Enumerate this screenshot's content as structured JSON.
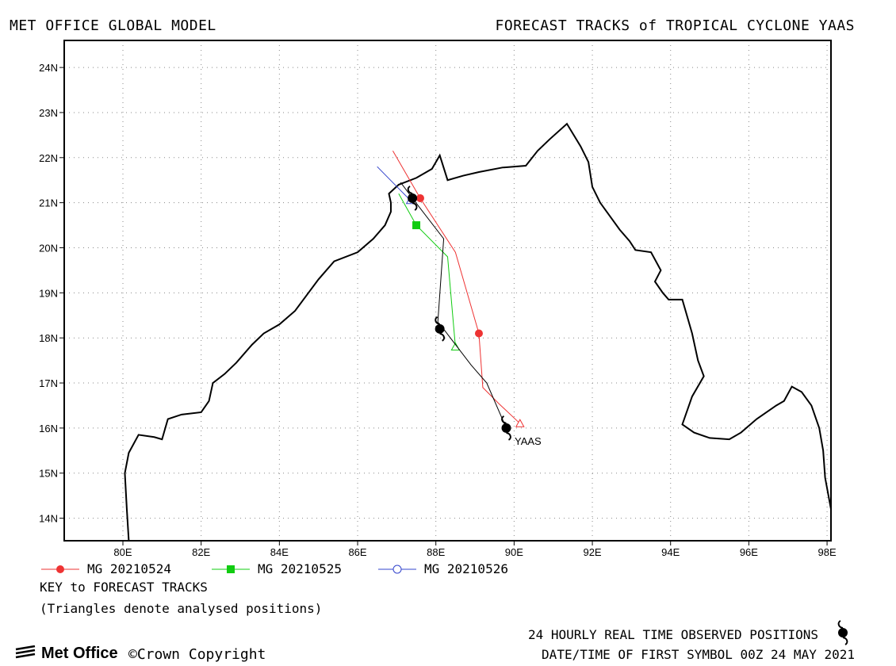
{
  "header": {
    "left_title": "MET OFFICE GLOBAL MODEL",
    "right_title": "FORECAST TRACKS of TROPICAL CYCLONE YAAS"
  },
  "map": {
    "lon_range": [
      78.5,
      98.1
    ],
    "lat_range": [
      13.5,
      24.6
    ],
    "grid": "dotted",
    "x_ticks": [
      "80E",
      "82E",
      "84E",
      "86E",
      "88E",
      "90E",
      "92E",
      "94E",
      "96E",
      "98E"
    ],
    "y_ticks": [
      "14N",
      "15N",
      "16N",
      "17N",
      "18N",
      "19N",
      "20N",
      "21N",
      "22N",
      "23N",
      "24N"
    ],
    "storm_label": "YAAS",
    "colors": {
      "coast": "#000000",
      "mg_20210524": "#ee3333",
      "mg_20210525": "#11cc11",
      "mg_20210526": "#3344cc",
      "observed": "#000000"
    },
    "coastline": [
      [
        80.15,
        13.5
      ],
      [
        80.1,
        14.2
      ],
      [
        80.05,
        15.0
      ],
      [
        80.15,
        15.45
      ],
      [
        80.4,
        15.85
      ],
      [
        80.8,
        15.8
      ],
      [
        81.0,
        15.75
      ],
      [
        81.15,
        16.2
      ],
      [
        81.5,
        16.3
      ],
      [
        82.0,
        16.35
      ],
      [
        82.2,
        16.6
      ],
      [
        82.3,
        17.0
      ],
      [
        82.6,
        17.2
      ],
      [
        82.9,
        17.45
      ],
      [
        83.3,
        17.85
      ],
      [
        83.6,
        18.1
      ],
      [
        84.0,
        18.3
      ],
      [
        84.4,
        18.6
      ],
      [
        84.7,
        18.95
      ],
      [
        85.0,
        19.3
      ],
      [
        85.4,
        19.7
      ],
      [
        86.0,
        19.9
      ],
      [
        86.4,
        20.2
      ],
      [
        86.7,
        20.5
      ],
      [
        86.85,
        20.8
      ],
      [
        86.85,
        21.0
      ],
      [
        86.8,
        21.2
      ],
      [
        87.05,
        21.4
      ],
      [
        87.5,
        21.55
      ],
      [
        87.9,
        21.75
      ],
      [
        88.1,
        22.05
      ],
      [
        88.3,
        21.5
      ],
      [
        88.7,
        21.6
      ],
      [
        89.1,
        21.68
      ],
      [
        89.7,
        21.78
      ],
      [
        90.3,
        21.82
      ],
      [
        90.6,
        22.15
      ],
      [
        90.9,
        22.4
      ],
      [
        91.35,
        22.75
      ],
      [
        91.7,
        22.25
      ],
      [
        91.9,
        21.9
      ],
      [
        92.0,
        21.35
      ],
      [
        92.2,
        21.0
      ],
      [
        92.45,
        20.7
      ],
      [
        92.7,
        20.4
      ],
      [
        92.95,
        20.15
      ],
      [
        93.1,
        19.95
      ],
      [
        93.5,
        19.9
      ],
      [
        93.75,
        19.5
      ],
      [
        93.6,
        19.25
      ],
      [
        93.8,
        19.0
      ],
      [
        93.95,
        18.85
      ],
      [
        94.3,
        18.85
      ],
      [
        94.55,
        18.1
      ],
      [
        94.7,
        17.5
      ],
      [
        94.85,
        17.15
      ],
      [
        94.55,
        16.7
      ],
      [
        94.3,
        16.08
      ],
      [
        94.6,
        15.9
      ],
      [
        95.0,
        15.78
      ],
      [
        95.5,
        15.75
      ],
      [
        95.8,
        15.9
      ],
      [
        96.2,
        16.2
      ],
      [
        96.7,
        16.5
      ],
      [
        96.9,
        16.6
      ],
      [
        97.1,
        16.92
      ],
      [
        97.35,
        16.8
      ],
      [
        97.6,
        16.5
      ],
      [
        97.8,
        16.0
      ],
      [
        97.9,
        15.5
      ],
      [
        97.95,
        14.9
      ],
      [
        98.1,
        14.2
      ]
    ]
  },
  "tracks": [
    {
      "name": "MG 20210524",
      "color": "#ee3333",
      "marker": "circle",
      "points": [
        [
          90.15,
          16.1
        ],
        [
          89.6,
          16.55
        ],
        [
          89.2,
          16.9
        ],
        [
          89.1,
          18.1
        ],
        [
          88.5,
          19.9
        ],
        [
          87.6,
          21.1
        ],
        [
          86.9,
          22.15
        ]
      ],
      "markers": [
        [
          89.1,
          18.1
        ],
        [
          87.6,
          21.1
        ]
      ],
      "analysed": [
        90.15,
        16.1
      ]
    },
    {
      "name": "MG 20210525",
      "color": "#11cc11",
      "marker": "square",
      "points": [
        [
          88.5,
          17.8
        ],
        [
          88.3,
          19.8
        ],
        [
          87.5,
          20.5
        ],
        [
          87.05,
          21.2
        ]
      ],
      "markers": [
        [
          87.5,
          20.5
        ]
      ],
      "analysed": [
        88.5,
        17.8
      ]
    },
    {
      "name": "MG 20210526",
      "color": "#3344cc",
      "marker": "circle-open",
      "points": [
        [
          87.35,
          21.05
        ],
        [
          86.5,
          21.8
        ]
      ],
      "markers": [],
      "analysed": [
        87.35,
        21.05
      ]
    }
  ],
  "observed": {
    "points": [
      [
        89.8,
        16.0
      ],
      [
        89.3,
        17.0
      ],
      [
        88.9,
        17.4
      ],
      [
        88.15,
        18.25
      ],
      [
        88.05,
        18.35
      ],
      [
        88.2,
        20.2
      ],
      [
        87.4,
        21.1
      ],
      [
        87.1,
        21.45
      ]
    ],
    "symbols": [
      [
        89.8,
        16.0
      ],
      [
        88.1,
        18.2
      ],
      [
        87.4,
        21.1
      ]
    ]
  },
  "legend": [
    "MG 20210524",
    "MG 20210525",
    "MG 20210526"
  ],
  "key": {
    "title": "KEY to FORECAST TRACKS",
    "note": "(Triangles denote analysed positions)"
  },
  "footer": {
    "observed": "24 HOURLY REAL TIME OBSERVED POSITIONS",
    "datetime": "DATE/TIME OF FIRST SYMBOL 00Z 24 MAY 2021",
    "logo": "Met Office",
    "copyright": "©Crown Copyright"
  }
}
